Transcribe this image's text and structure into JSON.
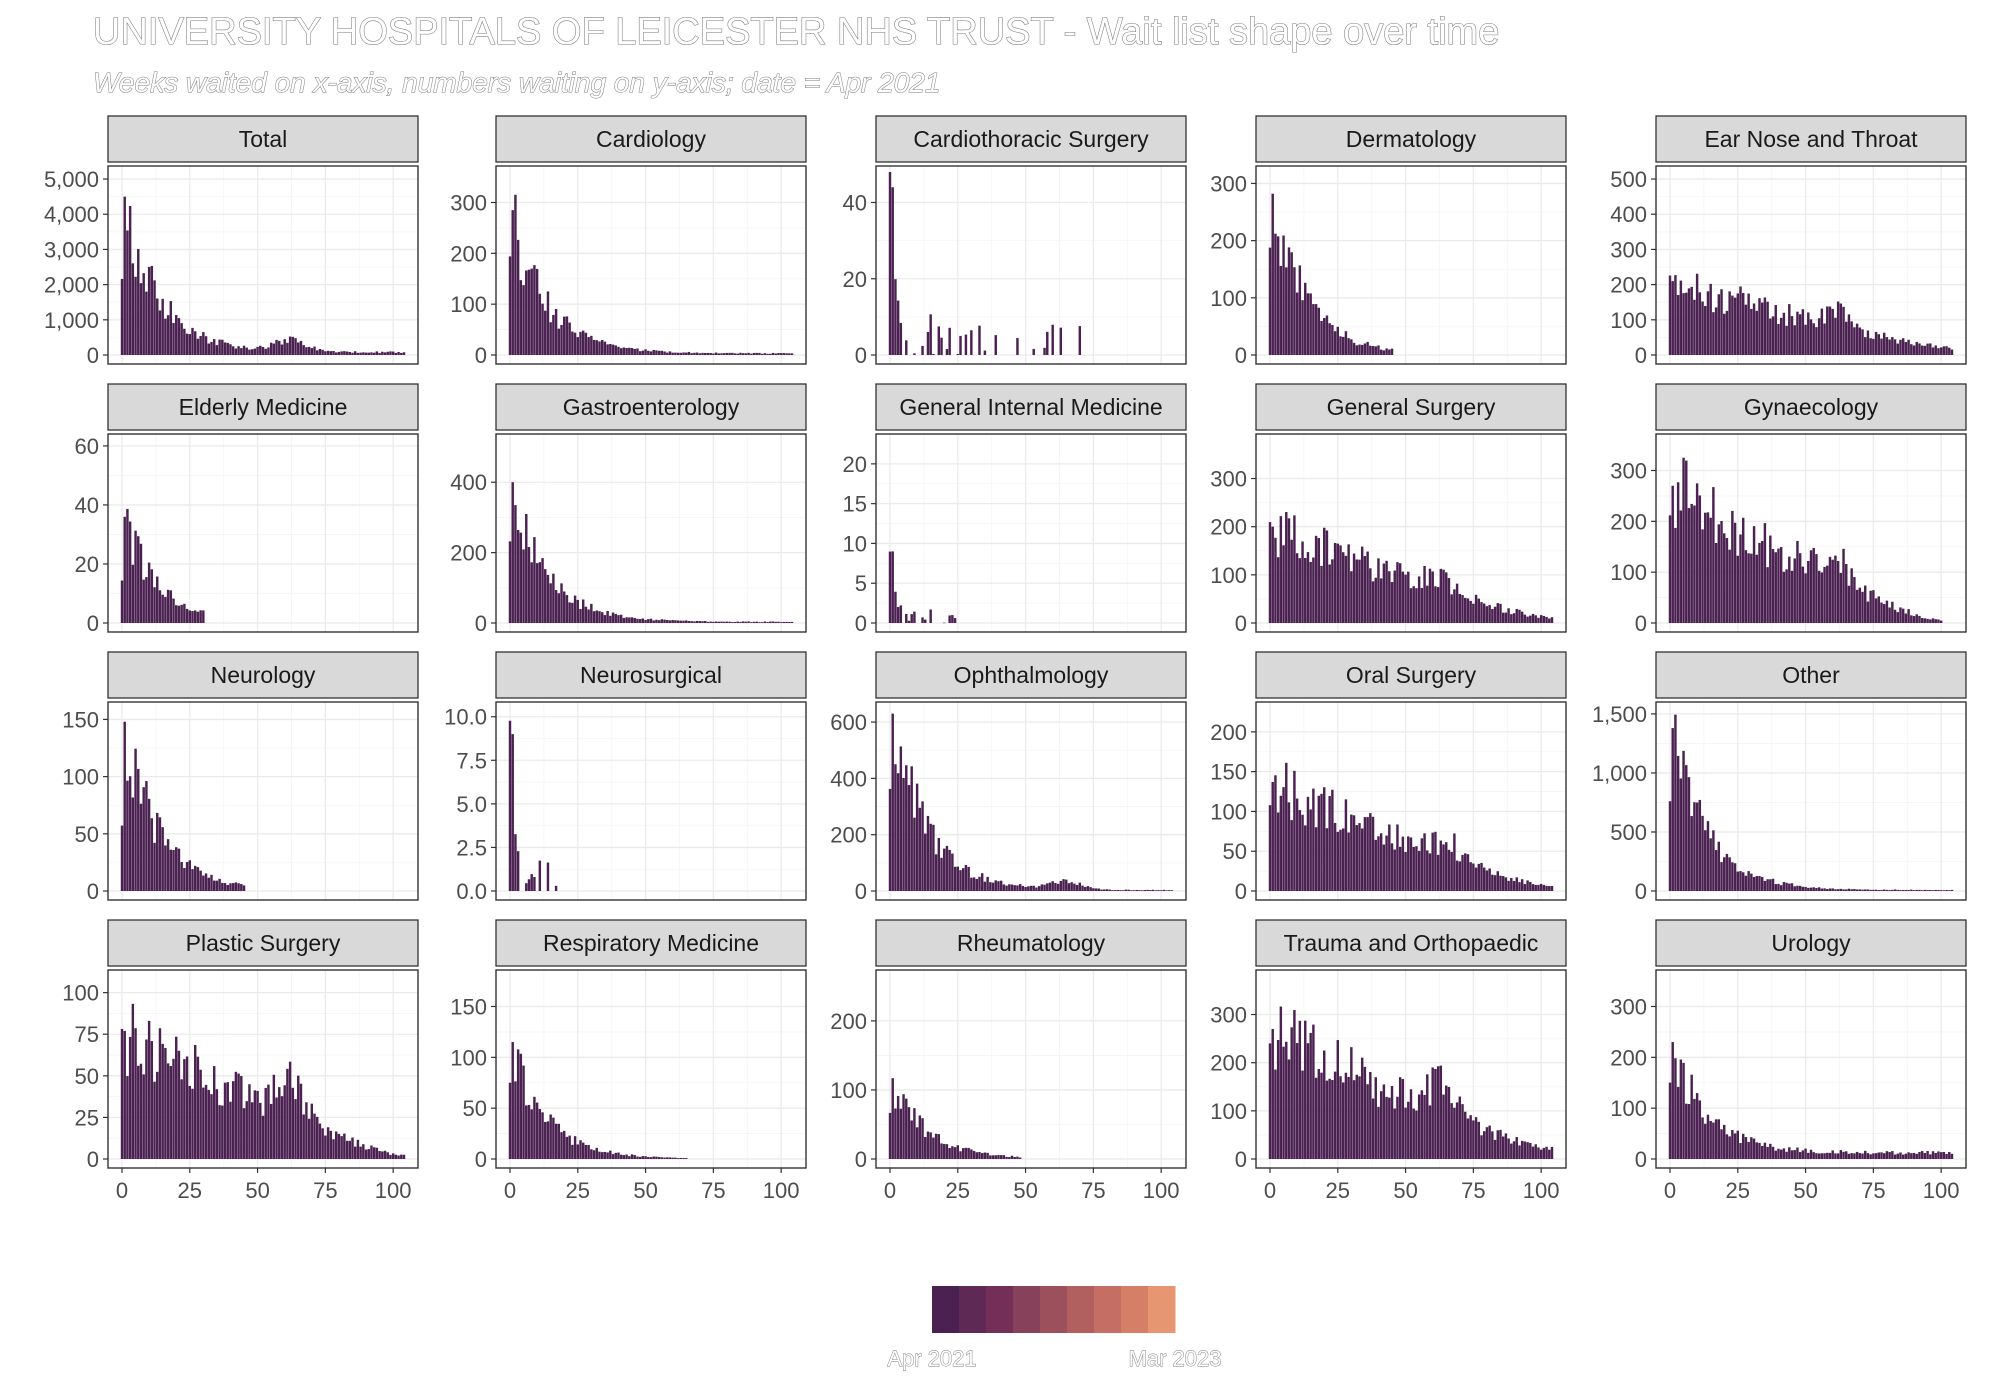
{
  "title": "UNIVERSITY HOSPITALS OF LEICESTER NHS TRUST - Wait list shape over time",
  "subtitle": "Weeks waited on x-axis, numbers waiting on y-axis; date = Apr 2021",
  "colors": {
    "bar": "#4a2150",
    "legend": [
      "#4a2150",
      "#5e2a55",
      "#732f58",
      "#88415a",
      "#9c505c",
      "#b25f5f",
      "#c46e64",
      "#d57f66",
      "#e69670"
    ]
  },
  "chart_data": {
    "type": "bar",
    "layout": "facet-grid 4 rows x 5 columns",
    "x_range": [
      0,
      104
    ],
    "x_ticks": [
      0,
      25,
      50,
      75,
      100
    ],
    "x_tick_labels": [
      "0",
      "25",
      "50",
      "75",
      "100"
    ],
    "legend": {
      "type": "color-steps",
      "labels": [
        "Apr 2021",
        "Mar 2023"
      ],
      "placement": "bottom"
    },
    "facets": [
      {
        "name": "Total",
        "ylim": [
          0,
          5200
        ],
        "y_ticks": [
          0,
          1000,
          2000,
          3000,
          4000,
          5000
        ],
        "y_tick_labels": [
          "0",
          "1,000",
          "2,000",
          "3,000",
          "4,000",
          "5,000"
        ],
        "profile": "decay",
        "peak": 4500,
        "floor": 80,
        "end_week": 104,
        "bump": [
          62,
          650
        ]
      },
      {
        "name": "Cardiology",
        "ylim": [
          0,
          360
        ],
        "y_ticks": [
          0,
          100,
          200,
          300
        ],
        "y_tick_labels": [
          "0",
          "100",
          "200",
          "300"
        ],
        "profile": "decay",
        "peak": 285,
        "floor": 3,
        "end_week": 104
      },
      {
        "name": "Cardiothoracic Surgery",
        "ylim": [
          0,
          48
        ],
        "y_ticks": [
          0,
          20,
          40
        ],
        "y_tick_labels": [
          "0",
          "20",
          "40"
        ],
        "profile": "sparse",
        "peak": 44,
        "floor": 0,
        "end_week": 70
      },
      {
        "name": "Dermatology",
        "ylim": [
          0,
          320
        ],
        "y_ticks": [
          0,
          100,
          200,
          300
        ],
        "y_tick_labels": [
          "0",
          "100",
          "200",
          "300"
        ],
        "profile": "decay",
        "peak": 282,
        "floor": 0,
        "end_week": 45
      },
      {
        "name": "Ear Nose and Throat",
        "ylim": [
          0,
          520
        ],
        "y_ticks": [
          0,
          100,
          200,
          300,
          400,
          500
        ],
        "y_tick_labels": [
          "0",
          "100",
          "200",
          "300",
          "400",
          "500"
        ],
        "profile": "plateau",
        "peak": 210,
        "floor": 20,
        "end_week": 104,
        "bump": [
          62,
          95
        ]
      },
      {
        "name": "Elderly Medicine",
        "ylim": [
          0,
          62
        ],
        "y_ticks": [
          0,
          20,
          40,
          60
        ],
        "y_tick_labels": [
          "0",
          "20",
          "40",
          "60"
        ],
        "profile": "decay",
        "peak": 36,
        "floor": 0,
        "end_week": 30
      },
      {
        "name": "Gastroenterology",
        "ylim": [
          0,
          520
        ],
        "y_ticks": [
          0,
          200,
          400
        ],
        "y_tick_labels": [
          "0",
          "200",
          "400"
        ],
        "profile": "decay",
        "peak": 400,
        "floor": 3,
        "end_week": 104
      },
      {
        "name": "General Internal Medicine",
        "ylim": [
          0,
          23
        ],
        "y_ticks": [
          0,
          5,
          10,
          15,
          20
        ],
        "y_tick_labels": [
          "0",
          "5",
          "10",
          "15",
          "20"
        ],
        "profile": "sparse",
        "peak": 9,
        "floor": 0,
        "end_week": 26
      },
      {
        "name": "General Surgery",
        "ylim": [
          0,
          380
        ],
        "y_ticks": [
          0,
          100,
          200,
          300
        ],
        "y_tick_labels": [
          "0",
          "100",
          "200",
          "300"
        ],
        "profile": "plateau",
        "peak": 200,
        "floor": 10,
        "end_week": 104,
        "bump": [
          62,
          45
        ]
      },
      {
        "name": "Gynaecology",
        "ylim": [
          0,
          360
        ],
        "y_ticks": [
          0,
          100,
          200,
          300
        ],
        "y_tick_labels": [
          "0",
          "100",
          "200",
          "300"
        ],
        "profile": "plateau",
        "peak": 270,
        "floor": 5,
        "end_week": 100,
        "bump": [
          60,
          100
        ]
      },
      {
        "name": "Neurology",
        "ylim": [
          0,
          160
        ],
        "y_ticks": [
          0,
          50,
          100,
          150
        ],
        "y_tick_labels": [
          "0",
          "50",
          "100",
          "150"
        ],
        "profile": "decay",
        "peak": 148,
        "floor": 0,
        "end_week": 45
      },
      {
        "name": "Neurosurgical",
        "ylim": [
          0,
          10.5
        ],
        "y_ticks": [
          0,
          2.5,
          5,
          7.5,
          10
        ],
        "y_tick_labels": [
          "0.0",
          "2.5",
          "5.0",
          "7.5",
          "10.0"
        ],
        "profile": "sparse",
        "peak": 9,
        "floor": 0,
        "end_week": 22
      },
      {
        "name": "Ophthalmology",
        "ylim": [
          0,
          650
        ],
        "y_ticks": [
          0,
          200,
          400,
          600
        ],
        "y_tick_labels": [
          "0",
          "200",
          "400",
          "600"
        ],
        "profile": "decay",
        "peak": 630,
        "floor": 3,
        "end_week": 104,
        "bump": [
          65,
          55
        ]
      },
      {
        "name": "Oral Surgery",
        "ylim": [
          0,
          230
        ],
        "y_ticks": [
          0,
          50,
          100,
          150,
          200
        ],
        "y_tick_labels": [
          "0",
          "50",
          "100",
          "150",
          "200"
        ],
        "profile": "plateau",
        "peak": 137,
        "floor": 5,
        "end_week": 104,
        "bump": [
          65,
          40
        ]
      },
      {
        "name": "Other",
        "ylim": [
          0,
          1550
        ],
        "y_ticks": [
          0,
          500,
          1000,
          1500
        ],
        "y_tick_labels": [
          "0",
          "500",
          "1,000",
          "1,500"
        ],
        "profile": "decay",
        "peak": 1380,
        "floor": 8,
        "end_week": 104
      },
      {
        "name": "Plastic Surgery",
        "ylim": [
          0,
          110
        ],
        "y_ticks": [
          0,
          25,
          50,
          75,
          100
        ],
        "y_tick_labels": [
          "0",
          "25",
          "50",
          "75",
          "100"
        ],
        "profile": "plateau",
        "peak": 77,
        "floor": 2,
        "end_week": 104,
        "bump": [
          62,
          40
        ]
      },
      {
        "name": "Respiratory Medicine",
        "ylim": [
          0,
          180
        ],
        "y_ticks": [
          0,
          50,
          100,
          150
        ],
        "y_tick_labels": [
          "0",
          "50",
          "100",
          "150"
        ],
        "profile": "decay",
        "peak": 115,
        "floor": 0,
        "end_week": 65
      },
      {
        "name": "Rheumatology",
        "ylim": [
          0,
          265
        ],
        "y_ticks": [
          0,
          100,
          200
        ],
        "y_tick_labels": [
          "0",
          "100",
          "200"
        ],
        "profile": "decay",
        "peak": 117,
        "floor": 0,
        "end_week": 48
      },
      {
        "name": "Trauma and Orthopaedic",
        "ylim": [
          0,
          380
        ],
        "y_ticks": [
          0,
          100,
          200,
          300
        ],
        "y_tick_labels": [
          "0",
          "100",
          "200",
          "300"
        ],
        "profile": "plateau",
        "peak": 270,
        "floor": 20,
        "end_week": 104,
        "bump": [
          62,
          120
        ]
      },
      {
        "name": "Urology",
        "ylim": [
          0,
          360
        ],
        "y_ticks": [
          0,
          100,
          200,
          300
        ],
        "y_tick_labels": [
          "0",
          "100",
          "200",
          "300"
        ],
        "profile": "decay",
        "peak": 230,
        "floor": 12,
        "end_week": 104
      }
    ]
  }
}
